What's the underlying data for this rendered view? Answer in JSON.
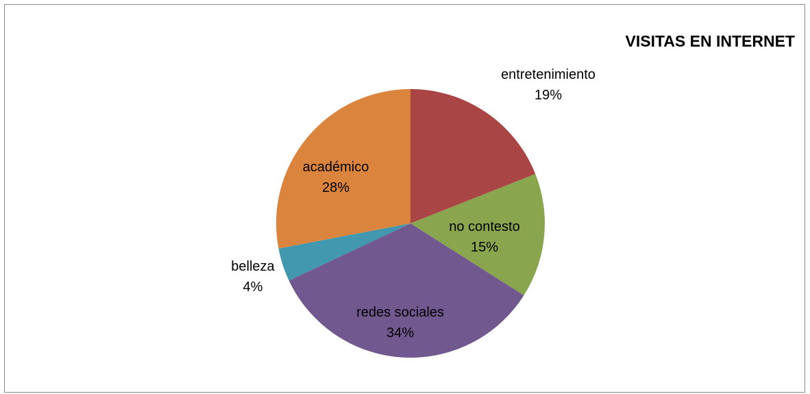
{
  "chart_data": {
    "type": "pie",
    "title": "VISITAS EN INTERNET",
    "categories": [
      "entretenimiento",
      "no contesto",
      "redes sociales",
      "belleza",
      "académico"
    ],
    "values": [
      19,
      15,
      34,
      4,
      28
    ],
    "value_labels": [
      "19%",
      "15%",
      "34%",
      "4%",
      "28%"
    ],
    "colors": [
      "#A94545",
      "#89A54E",
      "#71588F",
      "#4198AF",
      "#DB843D"
    ],
    "start_angle_deg": 0,
    "direction": "clockwise",
    "legend": "none",
    "data_labels": "category-and-percent"
  }
}
